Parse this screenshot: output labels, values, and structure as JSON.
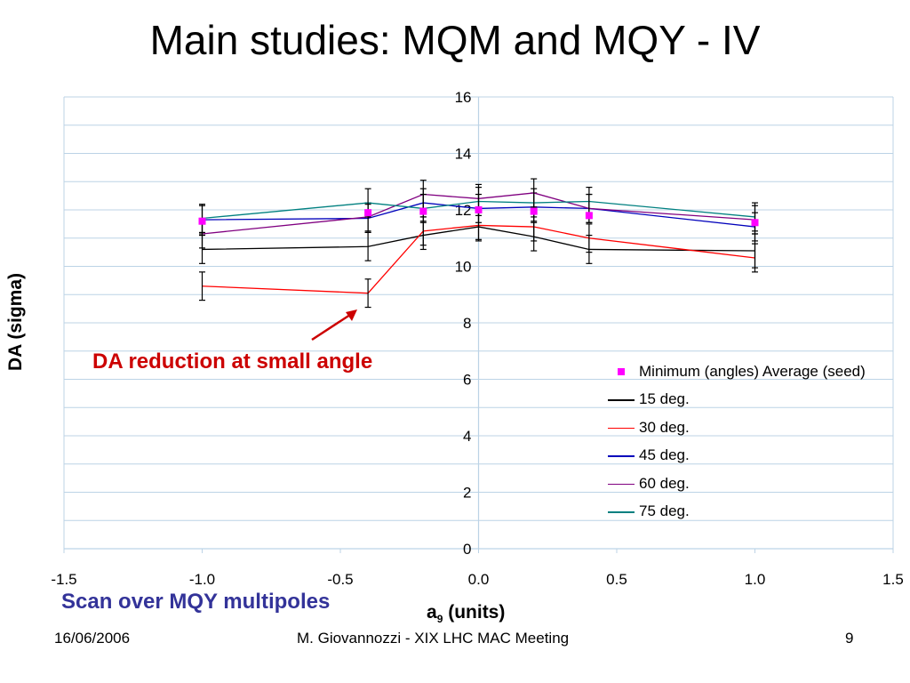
{
  "slide": {
    "title": "Main studies: MQM and MQY - IV",
    "annotation": "DA reduction at small angle",
    "caption": "Scan over MQY multipoles",
    "footer_date": "16/06/2006",
    "footer_center": "M. Giovannozzi - XIX LHC MAC Meeting",
    "footer_page": "9"
  },
  "chart_data": {
    "type": "line",
    "title": "",
    "xlabel_main": "a",
    "xlabel_sub": "9",
    "xlabel_rest": " (units)",
    "ylabel": "DA (sigma)",
    "xlim": [
      -1.5,
      1.5
    ],
    "ylim": [
      0,
      16
    ],
    "x_ticks": [
      "-1.5",
      "-1.0",
      "-0.5",
      "0.0",
      "0.5",
      "1.0",
      "1.5"
    ],
    "y_ticks": [
      "0",
      "2",
      "4",
      "6",
      "8",
      "10",
      "12",
      "14",
      "16"
    ],
    "grid": "horizontal",
    "legend_position": "right",
    "series": [
      {
        "name": "Minimum (angles) Average (seed)",
        "kind": "marker",
        "color": "#ff00ff",
        "x": [
          -1.0,
          -0.4,
          -0.2,
          0.0,
          0.2,
          0.4,
          1.0
        ],
        "y": [
          11.6,
          11.9,
          11.95,
          12.0,
          11.95,
          11.8,
          11.55
        ]
      },
      {
        "name": "15 deg.",
        "kind": "line",
        "color": "#000000",
        "x": [
          -1.0,
          -0.4,
          -0.2,
          0.0,
          0.2,
          0.4,
          1.0
        ],
        "y": [
          10.6,
          10.7,
          11.1,
          11.4,
          11.05,
          10.6,
          10.55
        ],
        "err": [
          0.5,
          0.5,
          0.5,
          0.5,
          0.5,
          0.5,
          0.6
        ]
      },
      {
        "name": "30 deg.",
        "kind": "line",
        "color": "#ff0000",
        "x": [
          -1.0,
          -0.4,
          -0.2,
          0.0,
          0.2,
          0.4,
          1.0
        ],
        "y": [
          9.3,
          9.05,
          11.25,
          11.45,
          11.4,
          11.0,
          10.3
        ],
        "err": [
          0.5,
          0.5,
          0.5,
          0.5,
          0.5,
          0.5,
          0.5
        ]
      },
      {
        "name": "45 deg.",
        "kind": "line",
        "color": "#0000bb",
        "x": [
          -1.0,
          -0.4,
          -0.2,
          0.0,
          0.2,
          0.4,
          1.0
        ],
        "y": [
          11.65,
          11.7,
          12.25,
          12.05,
          12.1,
          12.05,
          11.4
        ],
        "err": [
          0.5,
          0.5,
          0.5,
          0.5,
          0.5,
          0.5,
          0.5
        ]
      },
      {
        "name": "60 deg.",
        "kind": "line",
        "color": "#800080",
        "x": [
          -1.0,
          -0.4,
          -0.2,
          0.0,
          0.2,
          0.4,
          1.0
        ],
        "y": [
          11.15,
          11.75,
          12.55,
          12.4,
          12.6,
          12.05,
          11.65
        ],
        "err": [
          0.5,
          0.5,
          0.5,
          0.5,
          0.5,
          0.5,
          0.5
        ]
      },
      {
        "name": "75 deg.",
        "kind": "line",
        "color": "#008080",
        "x": [
          -1.0,
          -0.4,
          -0.2,
          0.0,
          0.2,
          0.4,
          1.0
        ],
        "y": [
          11.7,
          12.25,
          12.05,
          12.3,
          12.25,
          12.3,
          11.75
        ],
        "err": [
          0.5,
          0.5,
          0.5,
          0.5,
          0.5,
          0.5,
          0.5
        ]
      }
    ]
  }
}
